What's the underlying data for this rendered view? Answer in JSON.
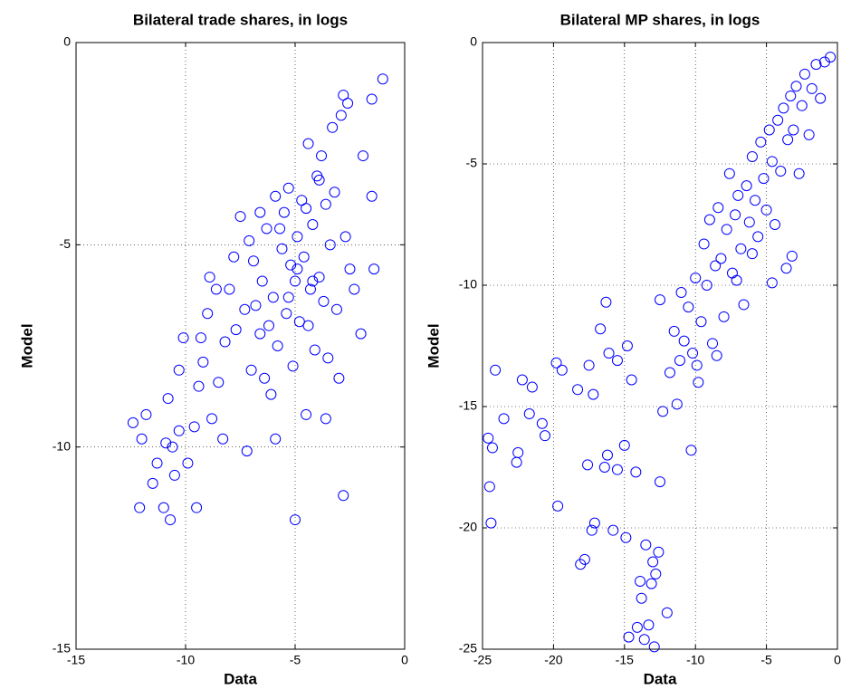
{
  "chart_data": [
    {
      "type": "scatter",
      "title": "Bilateral trade shares, in logs",
      "xlabel": "Data",
      "ylabel": "Model",
      "color": "#0000ff",
      "grid": true,
      "xlim": [
        -15,
        0
      ],
      "ylim": [
        -15,
        0
      ],
      "xticks": [
        -15,
        -10,
        -5,
        0
      ],
      "yticks": [
        -15,
        -10,
        -5,
        0
      ],
      "x": [
        -12.4,
        -12.1,
        -12,
        -11.8,
        -11.5,
        -11.3,
        -11,
        -10.9,
        -10.8,
        -10.7,
        -10.6,
        -10.5,
        -10.3,
        -10.3,
        -10.1,
        -9.9,
        -9.5,
        -9.6,
        -9.4,
        -9.2,
        -9,
        -8.8,
        -8.5,
        -8.3,
        -8.2,
        -8,
        -7.8,
        -7.5,
        -7.2,
        -7,
        -6.8,
        -6.6,
        -6.5,
        -6.3,
        -6.1,
        -6,
        -5.9,
        -5.8,
        -5.6,
        -5.5,
        -5.4,
        -5.3,
        -5.2,
        -5.1,
        -5,
        -5,
        -4.9,
        -4.8,
        -4.7,
        -4.6,
        -4.5,
        -4.4,
        -4.3,
        -4.2,
        -4.1,
        -4,
        -3.9,
        -3.8,
        -3.7,
        -3.6,
        -3.5,
        -3.4,
        -3.3,
        -3.2,
        -3.1,
        -3,
        -2.9,
        -2.8,
        -2.8,
        -2.7,
        -2.6,
        -2.3,
        -2,
        -1.9,
        -1.5,
        -1.4,
        -1.5,
        -1,
        -6.6,
        -7.3,
        -7.7,
        -8.6,
        -9.3,
        -6.9,
        -5.7,
        -5.3,
        -4.9,
        -4.5,
        -4.2,
        -6.2,
        -7.1,
        -5.9,
        -3.9,
        -4.4,
        -6.4,
        -8.9,
        -2.5,
        -3.6
      ],
      "y": [
        -9.4,
        -11.5,
        -9.8,
        -9.2,
        -10.9,
        -10.4,
        -11.5,
        -9.9,
        -8.8,
        -11.8,
        -10,
        -10.7,
        -9.6,
        -8.1,
        -7.3,
        -10.4,
        -11.5,
        -9.5,
        -8.5,
        -7.9,
        -6.7,
        -9.3,
        -8.4,
        -9.8,
        -7.4,
        -6.1,
        -5.3,
        -4.3,
        -10.1,
        -8.1,
        -6.5,
        -7.2,
        -5.9,
        -4.6,
        -8.7,
        -6.3,
        -9.8,
        -7.5,
        -5.1,
        -4.2,
        -6.7,
        -3.6,
        -5.5,
        -8,
        -11.8,
        -5.9,
        -4.8,
        -6.9,
        -3.9,
        -5.3,
        -9.2,
        -2.5,
        -6.1,
        -4.5,
        -7.6,
        -3.3,
        -5.8,
        -2.8,
        -6.4,
        -4,
        -7.8,
        -5,
        -2.1,
        -3.7,
        -6.6,
        -8.3,
        -1.8,
        -11.2,
        -1.3,
        -4.8,
        -1.5,
        -6.1,
        -7.2,
        -2.8,
        -3.8,
        -5.6,
        -1.4,
        -0.9,
        -4.2,
        -6.6,
        -7.1,
        -6.1,
        -7.3,
        -5.4,
        -4.6,
        -6.3,
        -5.6,
        -4.1,
        -5.9,
        -7,
        -4.9,
        -3.8,
        -3.4,
        -7,
        -8.3,
        -5.8,
        -5.6,
        -9.3
      ]
    },
    {
      "type": "scatter",
      "title": "Bilateral MP shares, in logs",
      "xlabel": "Data",
      "ylabel": "Model",
      "color": "#0000ff",
      "grid": true,
      "xlim": [
        -25,
        0
      ],
      "ylim": [
        -25,
        0
      ],
      "xticks": [
        -25,
        -20,
        -15,
        -10,
        -5,
        0
      ],
      "yticks": [
        -25,
        -20,
        -15,
        -10,
        -5,
        0
      ],
      "x": [
        -24.6,
        -24.5,
        -24.4,
        -24.3,
        -24.1,
        -23.5,
        -22.6,
        -22.5,
        -22.2,
        -21.7,
        -21.5,
        -20.8,
        -20.6,
        -19.8,
        -19.7,
        -19.4,
        -18.3,
        -18.1,
        -17.8,
        -17.6,
        -17.5,
        -17.2,
        -17.3,
        -17.1,
        -16.7,
        -16.4,
        -16.2,
        -16.1,
        -15.8,
        -15.5,
        -15,
        -14.9,
        -14.8,
        -14.7,
        -14.5,
        -14.2,
        -14.1,
        -13.9,
        -13.8,
        -13.6,
        -13.5,
        -13.3,
        -13.1,
        -13,
        -12.9,
        -12.8,
        -12.6,
        -12.5,
        -12.3,
        -12,
        -11.8,
        -11.5,
        -11.3,
        -11.1,
        -10.8,
        -10.5,
        -10.3,
        -10.2,
        -10,
        -9.8,
        -9.6,
        -9.4,
        -9.2,
        -9,
        -8.8,
        -8.6,
        -8.4,
        -8.2,
        -8,
        -7.8,
        -7.6,
        -7.4,
        -7.2,
        -7,
        -6.8,
        -6.6,
        -6.4,
        -6.2,
        -6,
        -5.8,
        -5.6,
        -5.4,
        -5.2,
        -5,
        -4.8,
        -4.6,
        -4.4,
        -4.2,
        -4,
        -3.8,
        -3.6,
        -3.5,
        -3.3,
        -3.1,
        -2.9,
        -2.7,
        -2.5,
        -2.3,
        -2,
        -1.8,
        -1.5,
        -1.2,
        -0.9,
        -0.5,
        -8.5,
        -9.9,
        -11,
        -7.1,
        -6,
        -3.2,
        -4.6,
        -12.5,
        -15.5,
        -16.3
      ],
      "y": [
        -16.3,
        -18.3,
        -19.8,
        -16.7,
        -13.5,
        -15.5,
        -17.3,
        -16.9,
        -13.9,
        -15.3,
        -14.2,
        -15.7,
        -16.2,
        -13.2,
        -19.1,
        -13.5,
        -14.3,
        -21.5,
        -21.3,
        -17.4,
        -13.3,
        -14.5,
        -20.1,
        -19.8,
        -11.8,
        -17.5,
        -17,
        -12.8,
        -20.1,
        -17.6,
        -16.6,
        -20.4,
        -12.5,
        -24.5,
        -13.9,
        -17.7,
        -24.1,
        -22.2,
        -22.9,
        -24.6,
        -20.7,
        -24,
        -22.3,
        -21.4,
        -24.9,
        -21.9,
        -21,
        -18.1,
        -15.2,
        -23.5,
        -13.6,
        -11.9,
        -14.9,
        -13.1,
        -12.3,
        -10.9,
        -16.8,
        -12.8,
        -9.7,
        -14,
        -11.5,
        -8.3,
        -10,
        -7.3,
        -12.4,
        -9.2,
        -6.8,
        -8.9,
        -11.3,
        -7.7,
        -5.4,
        -9.5,
        -7.1,
        -6.3,
        -8.5,
        -10.8,
        -5.9,
        -7.4,
        -4.7,
        -6.5,
        -8,
        -4.1,
        -5.6,
        -6.9,
        -3.6,
        -4.9,
        -7.5,
        -3.2,
        -5.3,
        -2.7,
        -9.3,
        -4,
        -2.2,
        -3.6,
        -1.8,
        -5.4,
        -2.6,
        -1.3,
        -3.8,
        -1.9,
        -0.9,
        -2.3,
        -0.8,
        -0.6,
        -12.9,
        -13.3,
        -10.3,
        -9.8,
        -8.7,
        -8.8,
        -9.9,
        -10.6,
        -13.1,
        -10.7
      ]
    }
  ]
}
